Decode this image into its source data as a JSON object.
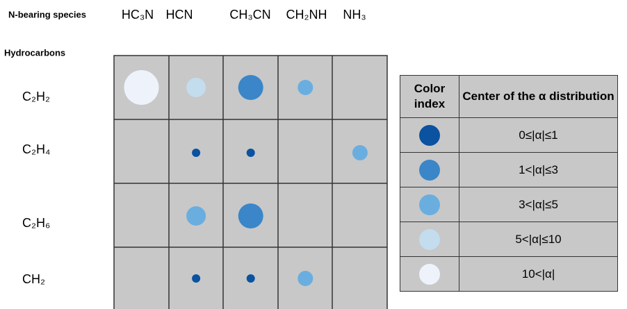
{
  "header": {
    "species_label": "N-bearing species",
    "hydrocarbons_label": "Hydrocarbons"
  },
  "columns": [
    "HC₃N",
    "HCN",
    "CH₃CN",
    "CH₂NH",
    "NH₃"
  ],
  "rows": [
    {
      "label": "C₂H₂",
      "cells": [
        {
          "color_index": 4,
          "size": "xl"
        },
        {
          "color_index": 3,
          "size": "m"
        },
        {
          "color_index": 1,
          "size": "l"
        },
        {
          "color_index": 2,
          "size": "s"
        },
        null
      ]
    },
    {
      "label": "C₂H₄",
      "cells": [
        null,
        {
          "color_index": 0,
          "size": "xs"
        },
        {
          "color_index": 0,
          "size": "xs"
        },
        null,
        {
          "color_index": 2,
          "size": "s"
        }
      ]
    },
    {
      "label": "C₂H₆",
      "cells": [
        null,
        {
          "color_index": 2,
          "size": "m"
        },
        {
          "color_index": 1,
          "size": "l"
        },
        null,
        null
      ]
    },
    {
      "label": "CH₂",
      "cells": [
        null,
        {
          "color_index": 0,
          "size": "xs"
        },
        {
          "color_index": 0,
          "size": "xs"
        },
        {
          "color_index": 2,
          "size": "s"
        },
        null
      ]
    }
  ],
  "legend": {
    "headers": [
      "Color index",
      "Center of the α distribution"
    ],
    "rows": [
      {
        "color": "#0b52a0",
        "range": "0≤|α|≤1"
      },
      {
        "color": "#3a86c8",
        "range": "1<|α|≤3"
      },
      {
        "color": "#6aaee0",
        "range": "3<|α|≤5"
      },
      {
        "color": "#c3dcee",
        "range": "5<|α|≤10"
      },
      {
        "color": "#eef3fb",
        "range": "10<|α|"
      }
    ]
  }
}
